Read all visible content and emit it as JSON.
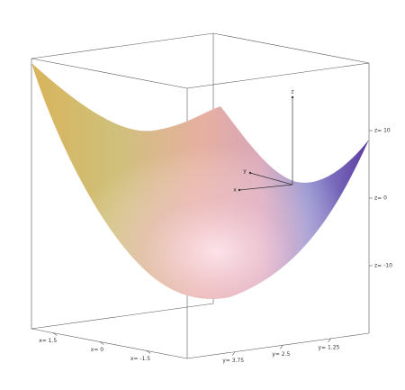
{
  "chart_data": {
    "type": "surface",
    "xlabel": "x",
    "ylabel": "y",
    "zlabel": "z",
    "xlim": [
      -2.8,
      2.2
    ],
    "ylim": [
      0.25,
      5
    ],
    "zlim": [
      -20,
      20
    ],
    "xticks": [
      {
        "value": 1.5,
        "label": "x= 1.5"
      },
      {
        "value": 0,
        "label": "x= 0"
      },
      {
        "value": -1.5,
        "label": "x= -1.5"
      }
    ],
    "yticks": [
      {
        "value": 3.75,
        "label": "y= 3.75"
      },
      {
        "value": 2.5,
        "label": "y= 2.5"
      },
      {
        "value": 1.25,
        "label": "y= 1.25"
      }
    ],
    "zticks": [
      {
        "value": 10,
        "label": "z= 10"
      },
      {
        "value": 0,
        "label": "z= 0"
      },
      {
        "value": -10,
        "label": "z= -10"
      }
    ]
  }
}
